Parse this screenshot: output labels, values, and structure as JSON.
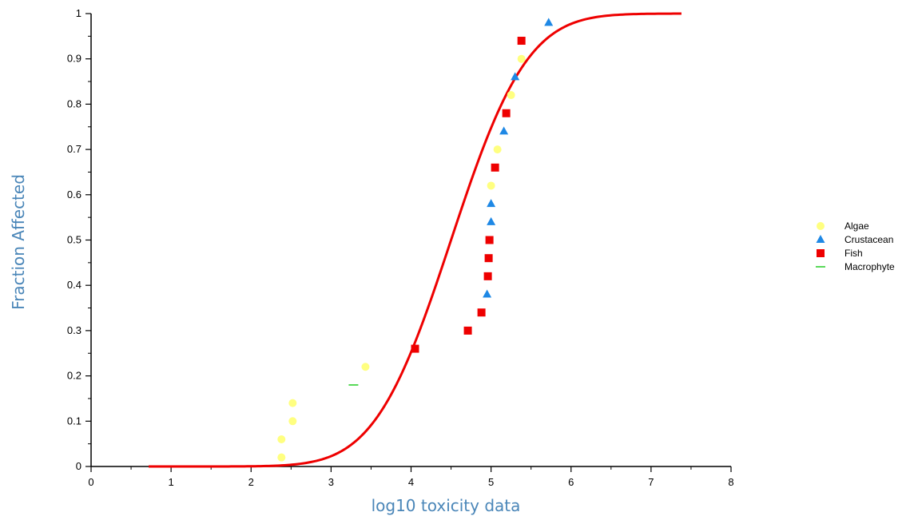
{
  "chart_data": {
    "type": "scatter",
    "xlabel": "log10 toxicity data",
    "ylabel": "Fraction Affected",
    "xlim": [
      0,
      8
    ],
    "ylim": [
      0,
      1
    ],
    "x_ticks": [
      "0",
      "1",
      "2",
      "3",
      "4",
      "5",
      "6",
      "7",
      "8"
    ],
    "y_ticks": [
      "0",
      "0.1",
      "0.2",
      "0.3",
      "0.4",
      "0.5",
      "0.6",
      "0.7",
      "0.8",
      "0.9",
      "1"
    ],
    "grid": false,
    "legend_position": "right",
    "series": [
      {
        "name": "Algae",
        "marker": "circle",
        "color": "#ffff80",
        "points": [
          [
            2.38,
            0.02
          ],
          [
            2.38,
            0.06
          ],
          [
            2.52,
            0.1
          ],
          [
            2.52,
            0.14
          ],
          [
            3.43,
            0.22
          ],
          [
            5.0,
            0.62
          ],
          [
            5.08,
            0.7
          ],
          [
            5.25,
            0.82
          ],
          [
            5.38,
            0.9
          ]
        ]
      },
      {
        "name": "Crustacean",
        "marker": "triangle",
        "color": "#1e88e5",
        "points": [
          [
            4.95,
            0.38
          ],
          [
            5.0,
            0.54
          ],
          [
            5.0,
            0.58
          ],
          [
            5.16,
            0.74
          ],
          [
            5.3,
            0.86
          ],
          [
            5.72,
            0.98
          ]
        ]
      },
      {
        "name": "Fish",
        "marker": "square",
        "color": "#ee0000",
        "points": [
          [
            4.05,
            0.26
          ],
          [
            4.71,
            0.3
          ],
          [
            4.88,
            0.34
          ],
          [
            4.96,
            0.42
          ],
          [
            4.97,
            0.46
          ],
          [
            4.98,
            0.5
          ],
          [
            5.05,
            0.66
          ],
          [
            5.19,
            0.78
          ],
          [
            5.38,
            0.94
          ]
        ]
      },
      {
        "name": "Macrophyte",
        "marker": "dash",
        "color": "#22cc22",
        "points": [
          [
            3.28,
            0.18
          ]
        ]
      }
    ],
    "fitted_curve": {
      "type": "line",
      "color": "#ee0000",
      "x_range": [
        0.72,
        7.38
      ],
      "mu": 4.5,
      "sigma": 0.75
    }
  }
}
